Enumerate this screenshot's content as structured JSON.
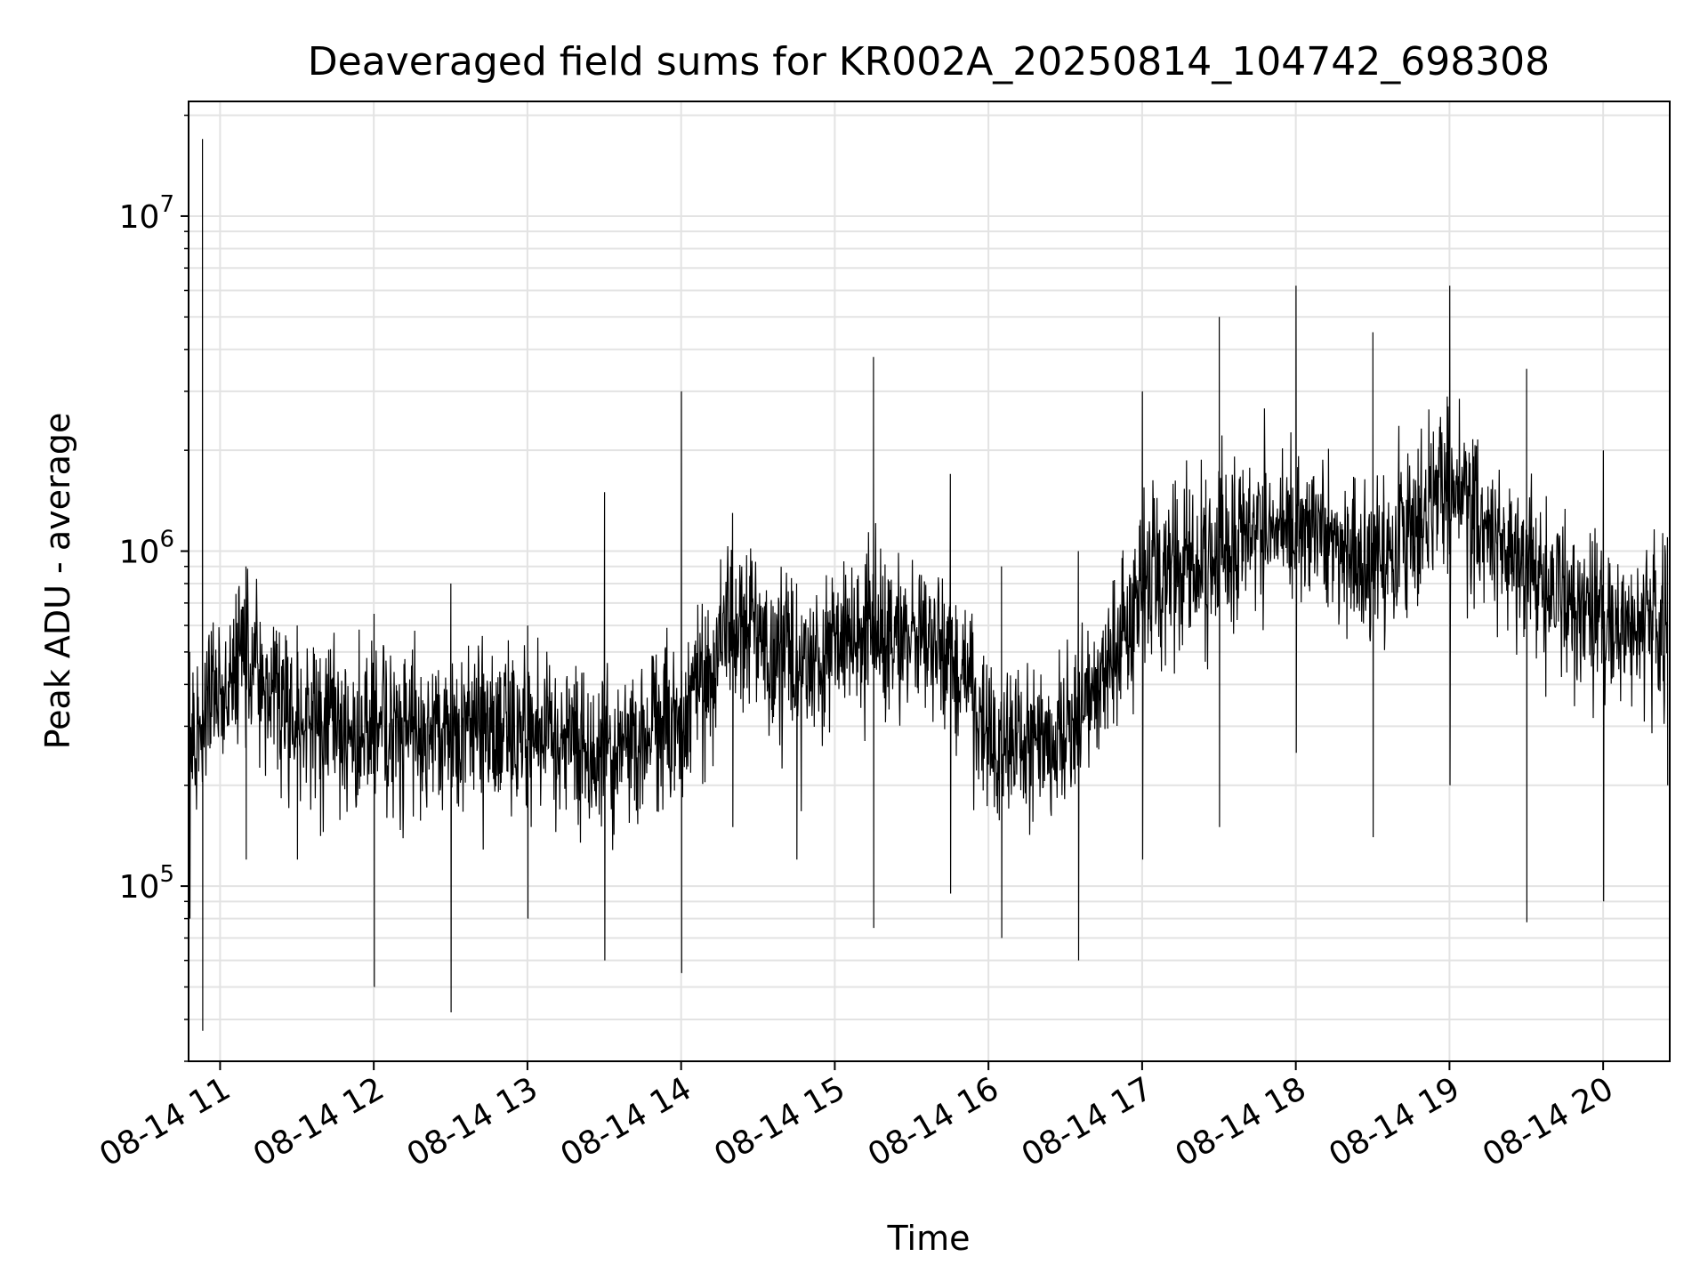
{
  "chart_data": {
    "type": "line",
    "title": "Deaveraged field sums for KR002A_20250814_104742_698308",
    "xlabel": "Time",
    "ylabel": "Peak ADU - average",
    "yscale": "log",
    "ylim": [
      30000,
      22000000
    ],
    "xlim": [
      "2025-08-14 10:47:42",
      "2025-08-14 20:26:00"
    ],
    "grid": true,
    "x_ticks": [
      {
        "t": "2025-08-14 11:00",
        "label": "08-14 11"
      },
      {
        "t": "2025-08-14 12:00",
        "label": "08-14 12"
      },
      {
        "t": "2025-08-14 13:00",
        "label": "08-14 13"
      },
      {
        "t": "2025-08-14 14:00",
        "label": "08-14 14"
      },
      {
        "t": "2025-08-14 15:00",
        "label": "08-14 15"
      },
      {
        "t": "2025-08-14 16:00",
        "label": "08-14 16"
      },
      {
        "t": "2025-08-14 17:00",
        "label": "08-14 17"
      },
      {
        "t": "2025-08-14 18:00",
        "label": "08-14 18"
      },
      {
        "t": "2025-08-14 19:00",
        "label": "08-14 19"
      },
      {
        "t": "2025-08-14 20:00",
        "label": "08-14 20"
      }
    ],
    "y_ticks": [
      {
        "value": 100000,
        "base": "10",
        "exp": "5"
      },
      {
        "value": 1000000,
        "base": "10",
        "exp": "6"
      },
      {
        "value": 10000000,
        "base": "10",
        "exp": "7"
      }
    ],
    "series": [
      {
        "color": "#000000",
        "approximate_envelope": [
          {
            "t": "2025-08-14 10:48",
            "typical": 250000,
            "low": 80000,
            "high": 500000
          },
          {
            "t": "2025-08-14 10:53",
            "typical": 300000,
            "low": 37000,
            "high": 17000000
          },
          {
            "t": "2025-08-14 11:10",
            "typical": 500000,
            "low": 120000,
            "high": 900000
          },
          {
            "t": "2025-08-14 11:30",
            "typical": 300000,
            "low": 120000,
            "high": 600000
          },
          {
            "t": "2025-08-14 12:00",
            "typical": 300000,
            "low": 50000,
            "high": 650000
          },
          {
            "t": "2025-08-14 12:30",
            "typical": 280000,
            "low": 42000,
            "high": 800000
          },
          {
            "t": "2025-08-14 13:00",
            "typical": 280000,
            "low": 80000,
            "high": 600000
          },
          {
            "t": "2025-08-14 13:30",
            "typical": 250000,
            "low": 60000,
            "high": 1500000
          },
          {
            "t": "2025-08-14 14:00",
            "typical": 300000,
            "low": 55000,
            "high": 3000000
          },
          {
            "t": "2025-08-14 14:20",
            "typical": 600000,
            "low": 150000,
            "high": 1300000
          },
          {
            "t": "2025-08-14 14:45",
            "typical": 450000,
            "low": 120000,
            "high": 800000
          },
          {
            "t": "2025-08-14 15:15",
            "typical": 600000,
            "low": 75000,
            "high": 3800000
          },
          {
            "t": "2025-08-14 15:45",
            "typical": 500000,
            "low": 95000,
            "high": 1700000
          },
          {
            "t": "2025-08-14 16:05",
            "typical": 250000,
            "low": 70000,
            "high": 900000
          },
          {
            "t": "2025-08-14 16:35",
            "typical": 300000,
            "low": 60000,
            "high": 1000000
          },
          {
            "t": "2025-08-14 17:00",
            "typical": 800000,
            "low": 120000,
            "high": 3000000
          },
          {
            "t": "2025-08-14 17:30",
            "typical": 1000000,
            "low": 150000,
            "high": 5000000
          },
          {
            "t": "2025-08-14 18:00",
            "typical": 1300000,
            "low": 250000,
            "high": 6200000
          },
          {
            "t": "2025-08-14 18:30",
            "typical": 900000,
            "low": 140000,
            "high": 4500000
          },
          {
            "t": "2025-08-14 19:00",
            "typical": 1500000,
            "low": 200000,
            "high": 6200000
          },
          {
            "t": "2025-08-14 19:30",
            "typical": 900000,
            "low": 78000,
            "high": 3500000
          },
          {
            "t": "2025-08-14 20:00",
            "typical": 600000,
            "low": 90000,
            "high": 2000000
          },
          {
            "t": "2025-08-14 20:25",
            "typical": 600000,
            "low": 200000,
            "high": 1100000
          }
        ]
      }
    ]
  }
}
